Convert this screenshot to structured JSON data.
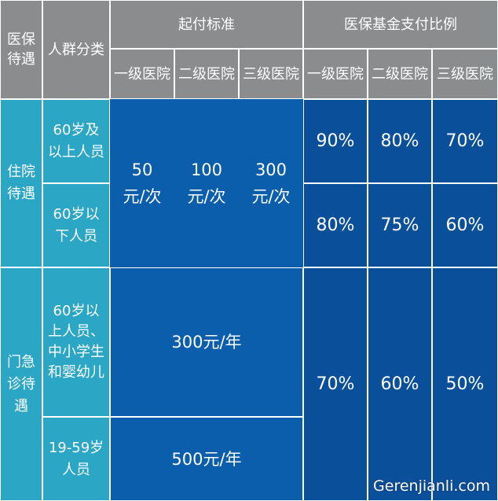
{
  "headers": {
    "col_treatment": "医保\n待遇",
    "col_group": "人群分类",
    "threshold": "起付标准",
    "ratio": "医保基金支付比例",
    "level1": "一级医院",
    "level2": "二级医院",
    "level3": "三级医院"
  },
  "inpatient": {
    "label": "住院\n待遇",
    "group_60_above": "60岁及\n以上人员",
    "group_60_below": "60岁以\n下人员",
    "threshold_l1": "50\n元/次",
    "threshold_l2": "100\n元/次",
    "threshold_l3": "300\n元/次",
    "ratio_60_above": [
      "90%",
      "80%",
      "70%"
    ],
    "ratio_60_below": [
      "80%",
      "75%",
      "60%"
    ]
  },
  "outpatient": {
    "label": "门急\n诊待\n遇",
    "group_a": "60岁以\n上人员、\n中小学生\n和婴幼儿",
    "threshold_a": "300元/年",
    "group_b": "19-59岁\n人员",
    "threshold_b": "500元/年",
    "ratios": [
      "70%",
      "60%",
      "50%"
    ]
  },
  "watermark": "Gerenjianli.com",
  "colors": {
    "header_gray": "#8a8c8e",
    "teal": "#2ba6c4",
    "blue": "#0b5eab",
    "navy": "#0a4f9a"
  }
}
